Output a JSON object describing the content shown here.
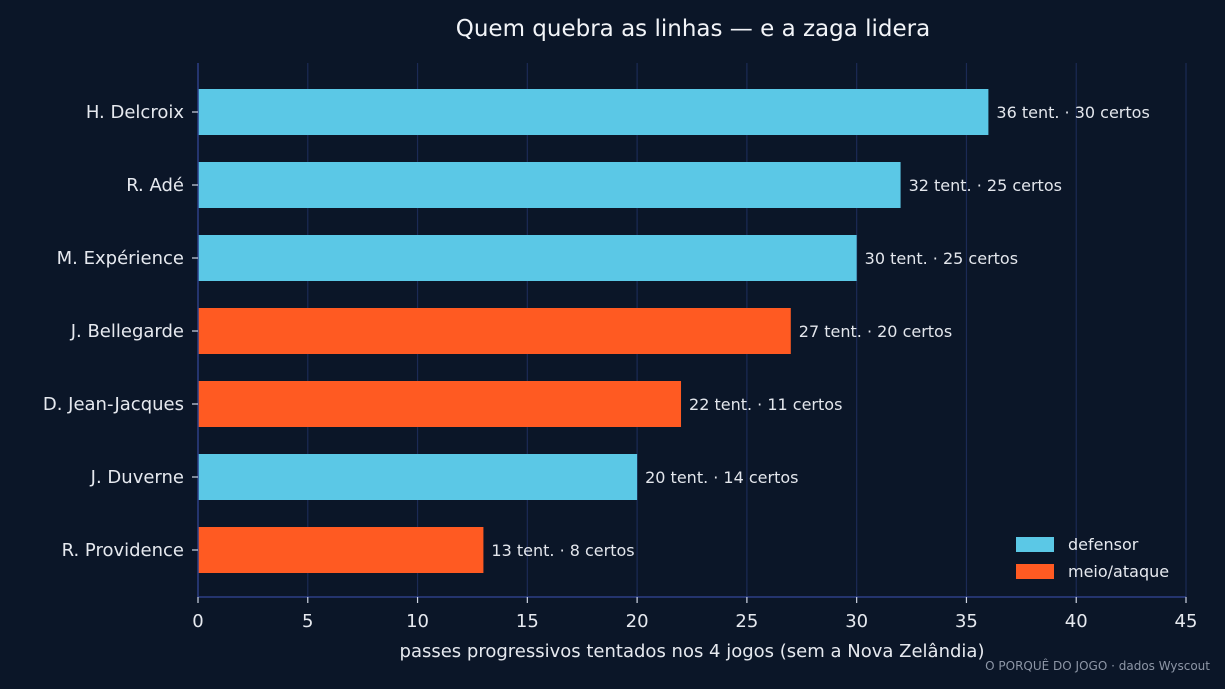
{
  "chart_data": {
    "type": "bar",
    "orientation": "horizontal",
    "title": "Quem quebra as linhas — e a zaga lidera",
    "xlabel": "passes progressivos tentados nos 4 jogos (sem a Nova Zelândia)",
    "ylabel": "",
    "xlim": [
      0,
      45
    ],
    "xticks": [
      0,
      5,
      10,
      15,
      20,
      25,
      30,
      35,
      40,
      45
    ],
    "grid": "vertical",
    "legend_position": "bottom-right",
    "legend": [
      {
        "key": "defensor",
        "label": "defensor",
        "color": "#5bc8e6"
      },
      {
        "key": "meio",
        "label": "meio/ataque",
        "color": "#ff5a22"
      }
    ],
    "bars": [
      {
        "name": "H. Delcroix",
        "value": 36,
        "label": "36 tent. · 30 certos",
        "group": "defensor"
      },
      {
        "name": "R. Adé",
        "value": 32,
        "label": "32 tent. · 25 certos",
        "group": "defensor"
      },
      {
        "name": "M. Expérience",
        "value": 30,
        "label": "30 tent. · 25 certos",
        "group": "defensor"
      },
      {
        "name": "J. Bellegarde",
        "value": 27,
        "label": "27 tent. · 20 certos",
        "group": "meio"
      },
      {
        "name": "D. Jean-Jacques",
        "value": 22,
        "label": "22 tent. · 11 certos",
        "group": "meio"
      },
      {
        "name": "J. Duverne",
        "value": 20,
        "label": "20 tent. · 14 certos",
        "group": "defensor"
      },
      {
        "name": "R. Providence",
        "value": 13,
        "label": "13 tent. · 8 certos",
        "group": "meio"
      }
    ]
  },
  "credit": "O PORQUÊ DO JOGO · dados Wyscout"
}
